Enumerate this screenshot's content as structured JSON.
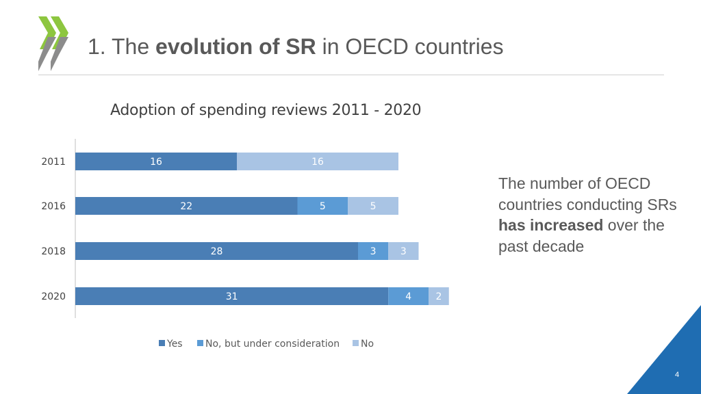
{
  "header": {
    "title_prefix": "1. The ",
    "title_bold": "evolution of SR",
    "title_suffix": " in OECD countries"
  },
  "side_text": {
    "line1": "The number of OECD countries conducting SRs ",
    "bold": "has increased",
    "line2": " over the past decade"
  },
  "page_number": "4",
  "colors": {
    "yes": "#4a7eb5",
    "consideration": "#5b9bd5",
    "no": "#a9c4e4",
    "logo": "#8dc63f",
    "corner": "#1f6db2"
  },
  "chart_data": {
    "type": "bar",
    "orientation": "horizontal",
    "stacked": true,
    "title": "Adoption of spending reviews 2011 - 2020",
    "categories": [
      "2011",
      "2016",
      "2018",
      "2020"
    ],
    "series": [
      {
        "name": "Yes",
        "values": [
          16,
          22,
          28,
          31
        ]
      },
      {
        "name": "No, but under consideration",
        "values": [
          0,
          5,
          3,
          4
        ]
      },
      {
        "name": "No",
        "values": [
          16,
          5,
          3,
          2
        ]
      }
    ],
    "xlim": [
      0,
      37
    ],
    "grid": false,
    "legend": "bottom",
    "data_labels": true
  }
}
